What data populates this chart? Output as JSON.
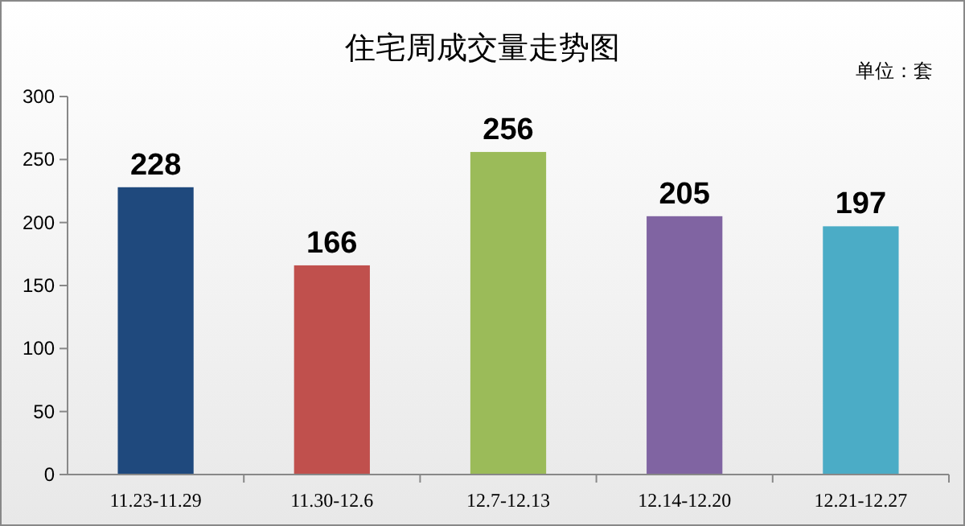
{
  "chart_data": {
    "type": "bar",
    "title": "住宅周成交量走势图",
    "annotations": [
      "单位：套"
    ],
    "categories": [
      "11.23-11.29",
      "11.30-12.6",
      "12.7-12.13",
      "12.14-12.20",
      "12.21-12.27"
    ],
    "values": [
      228,
      166,
      256,
      205,
      197
    ],
    "colors": [
      "#1f497d",
      "#c0504d",
      "#9bbb59",
      "#8064a2",
      "#4bacc6"
    ],
    "ylim": [
      0,
      300
    ],
    "yticks": [
      0,
      50,
      100,
      150,
      200,
      250,
      300
    ],
    "data_labels": true,
    "grid": false
  }
}
